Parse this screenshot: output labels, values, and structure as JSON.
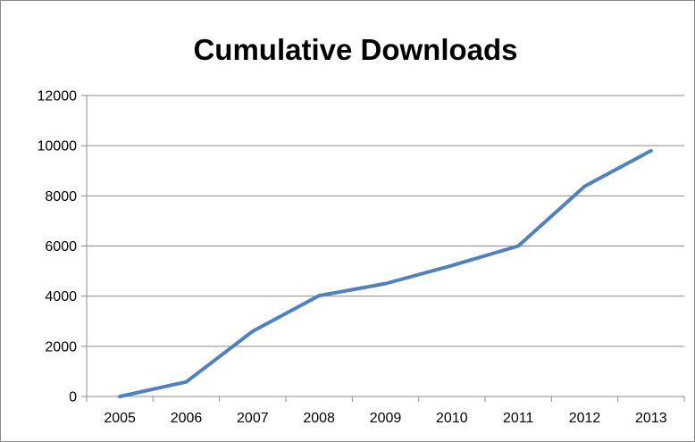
{
  "chart_data": {
    "type": "line",
    "title": "Cumulative Downloads",
    "xlabel": "",
    "ylabel": "",
    "categories": [
      "2005",
      "2006",
      "2007",
      "2008",
      "2009",
      "2010",
      "2011",
      "2012",
      "2013"
    ],
    "series": [
      {
        "values": [
          0,
          580,
          2600,
          4020,
          4500,
          5220,
          6000,
          8380,
          9800
        ]
      }
    ],
    "ylim": [
      0,
      12000
    ],
    "yticks": [
      0,
      2000,
      4000,
      6000,
      8000,
      10000,
      12000
    ],
    "grid": "horizontal",
    "legend": "none",
    "colors": {
      "line": "#4f81bd",
      "grid": "#8c8c8c",
      "axis": "#8c8c8c",
      "text": "#000000"
    }
  }
}
